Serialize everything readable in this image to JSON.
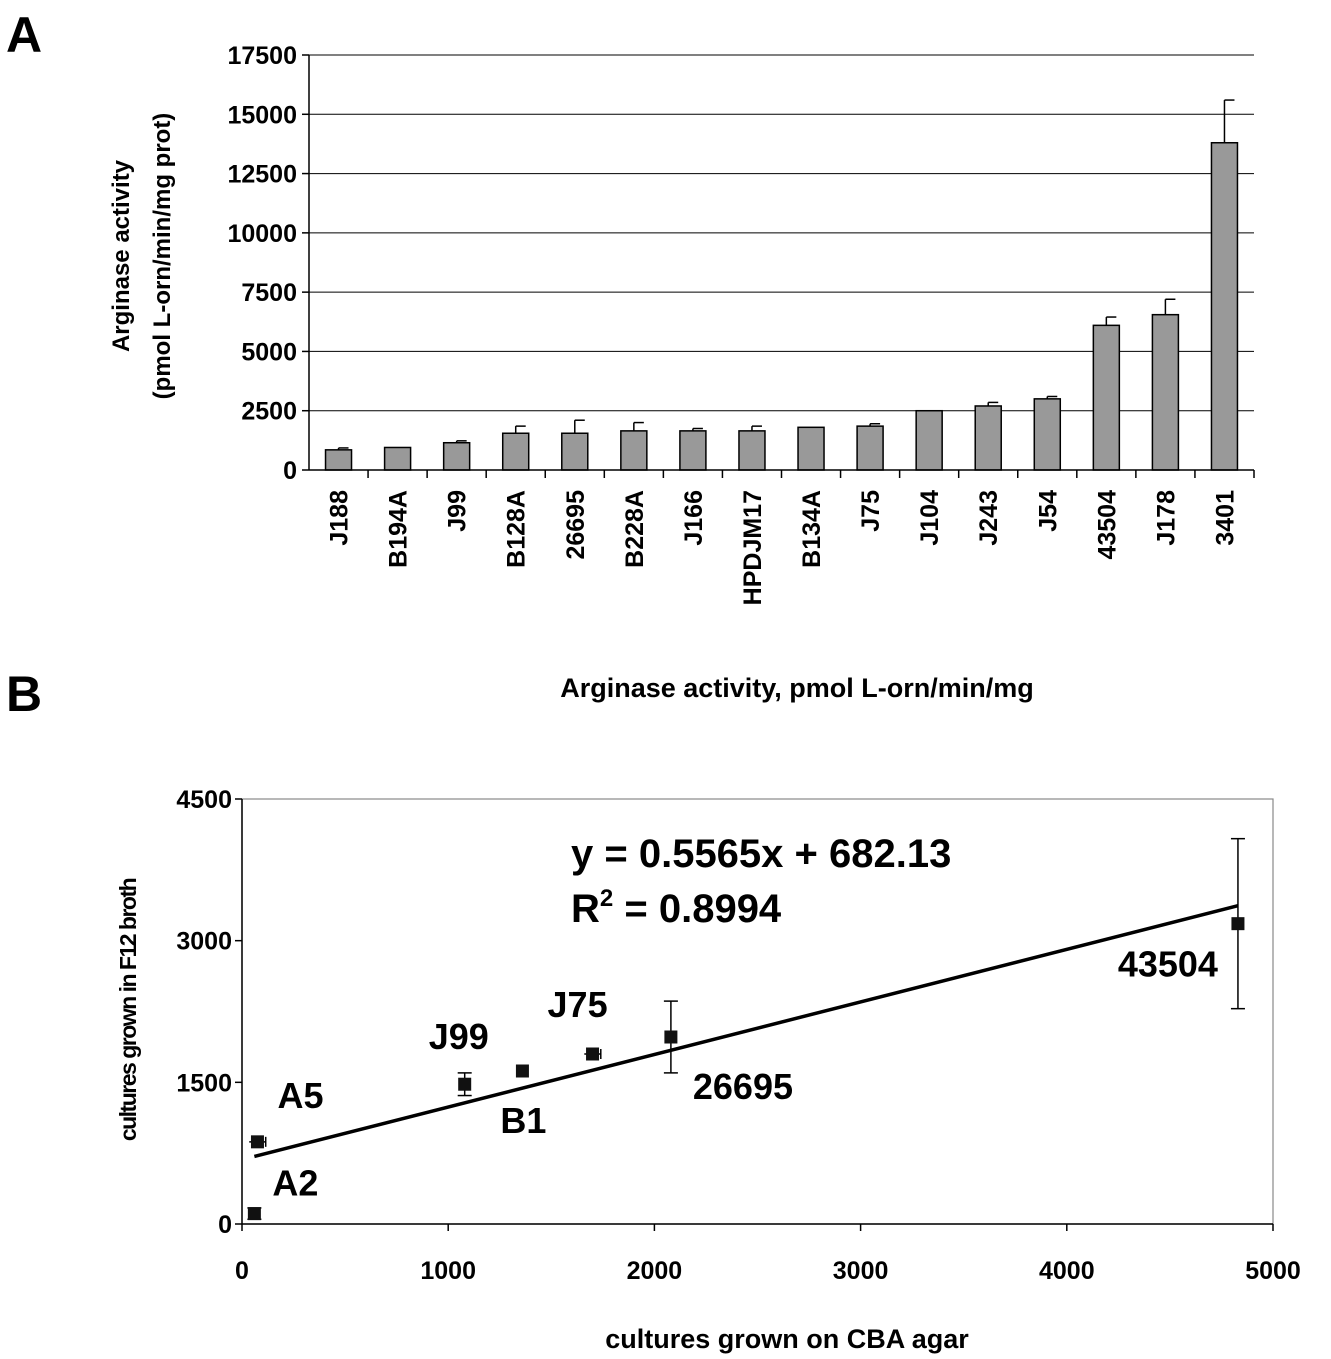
{
  "panels": {
    "a_letter": "A",
    "b_letter": "B",
    "b_header": "Arginase activity, pmol L-orn/min/mg"
  },
  "chart_data": [
    {
      "type": "bar",
      "title": "",
      "ylabel_line1": "Arginase activity",
      "ylabel_line2": "(pmol L-orn/min/mg prot)",
      "xlabel": "",
      "ylim": [
        0,
        17500
      ],
      "yticks": [
        0,
        2500,
        5000,
        7500,
        10000,
        12500,
        15000,
        17500
      ],
      "grid": "horizontal",
      "bar_color": "#999999",
      "categories": [
        "J188",
        "B194A",
        "J99",
        "B128A",
        "26695",
        "B228A",
        "J166",
        "HPDJM17",
        "B134A",
        "J75",
        "J104",
        "J243",
        "J54",
        "43504",
        "J178",
        "3401"
      ],
      "values": [
        850,
        950,
        1150,
        1550,
        1550,
        1650,
        1650,
        1650,
        1800,
        1850,
        2500,
        2700,
        3000,
        6100,
        6550,
        13800
      ],
      "errors": [
        80,
        0,
        80,
        300,
        550,
        350,
        100,
        200,
        0,
        100,
        0,
        150,
        100,
        350,
        650,
        1800
      ]
    },
    {
      "type": "scatter",
      "title": "",
      "xlabel": "cultures grown on CBA agar",
      "ylabel": "cultures grown in F12 broth",
      "xlim": [
        0,
        5000
      ],
      "ylim": [
        0,
        4500
      ],
      "xticks": [
        0,
        1000,
        2000,
        3000,
        4000,
        5000
      ],
      "yticks": [
        0,
        1500,
        3000,
        4500
      ],
      "grid": "none",
      "points": [
        {
          "label": "A2",
          "x": 60,
          "y": 110,
          "yerr": 60,
          "xerr": 15
        },
        {
          "label": "A5",
          "x": 75,
          "y": 870,
          "yerr": 0,
          "xerr": 40
        },
        {
          "label": "J99",
          "x": 1080,
          "y": 1480,
          "yerr": 120,
          "xerr": 0
        },
        {
          "label": "B1",
          "x": 1360,
          "y": 1620,
          "yerr": 0,
          "xerr": 0
        },
        {
          "label": "J75",
          "x": 1700,
          "y": 1800,
          "yerr": 0,
          "xerr": 40
        },
        {
          "label": "26695",
          "x": 2080,
          "y": 1980,
          "yerr": 380,
          "xerr": 0
        },
        {
          "label": "43504",
          "x": 4830,
          "y": 3180,
          "yerr": 900,
          "xerr": 0
        }
      ],
      "trendline": {
        "slope": 0.5565,
        "intercept": 682.13,
        "x_from": 60,
        "x_to": 4830
      },
      "equation": "y = 0.5565x + 682.13",
      "r2_prefix": "R",
      "r2_sup": "2",
      "r2_suffix": " = 0.8994"
    }
  ]
}
